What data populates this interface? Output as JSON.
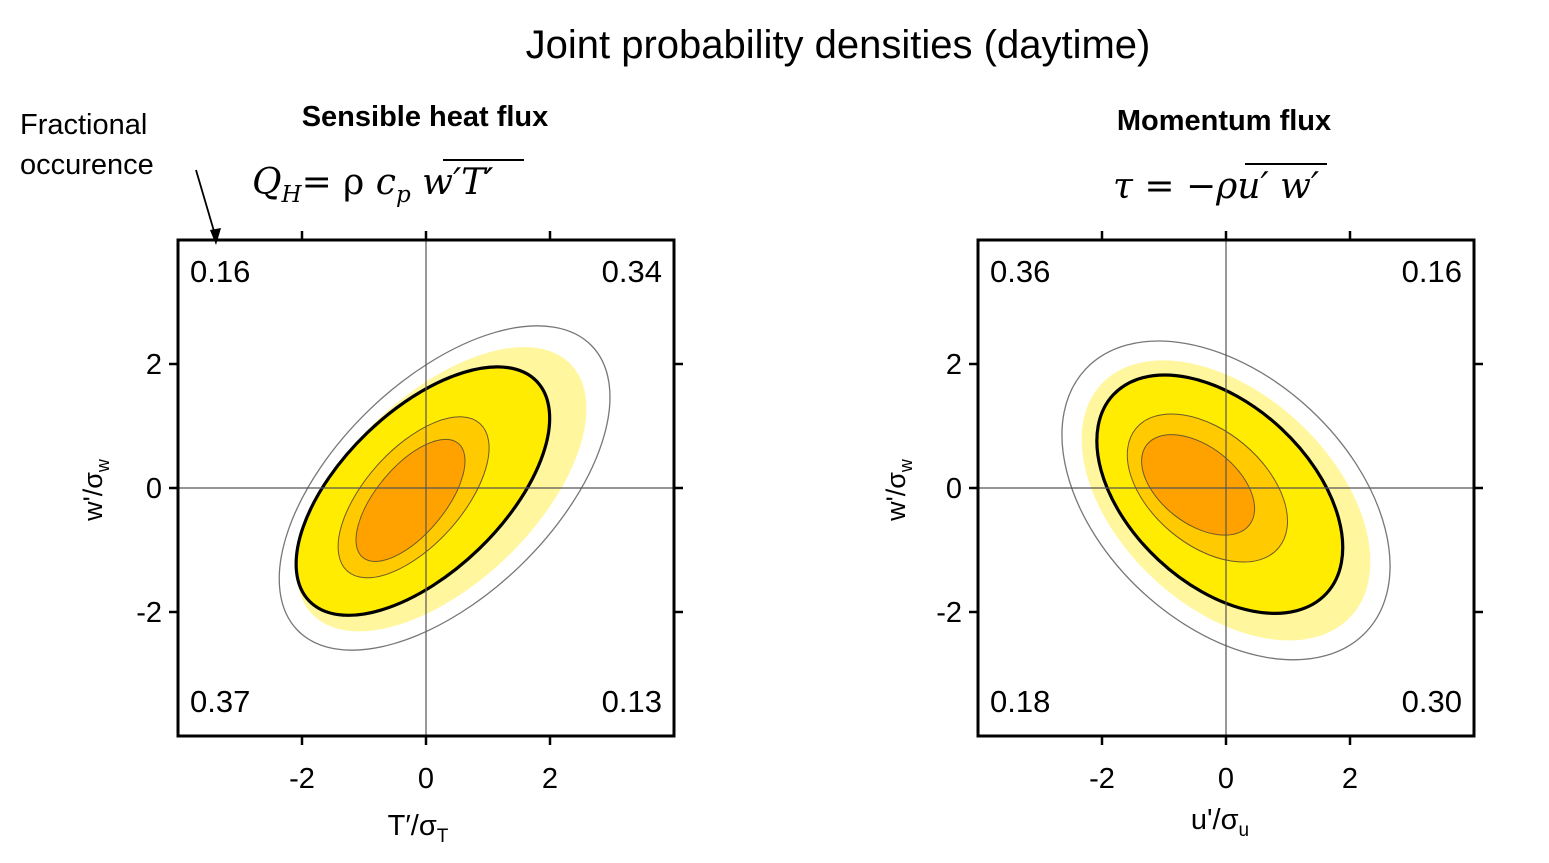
{
  "figure": {
    "title": "Joint probability densities (daytime)",
    "annotation": "Fractional occurence"
  },
  "colors": {
    "level1": "#ffffff",
    "level2": "#fff69e",
    "level3": "#ffec00",
    "level4": "#ffca00",
    "level5": "#ffa200",
    "frame": "#000000",
    "outer_contour": "#777777",
    "guide_lines": "#555555"
  },
  "chart_data": [
    {
      "type": "contour",
      "title": "Sensible heat flux",
      "equation": "Q_H = ρ c_p overline(w′T′)",
      "equation_parts": [
        "Q",
        "H",
        "= ρ ",
        "c",
        "p",
        "w′T′"
      ],
      "xlabel": "T′/σT",
      "xlabel_main": "T′/σ",
      "xlabel_sub": "T",
      "ylabel": "w′/σw",
      "ylabel_main": "w'/σ",
      "ylabel_sub": "w",
      "xlim": [
        -4,
        4
      ],
      "ylim": [
        -4,
        4
      ],
      "xticks": [
        -2,
        0,
        2
      ],
      "yticks": [
        -2,
        0,
        2
      ],
      "xtick_labels": [
        "-2",
        "0",
        "2"
      ],
      "ytick_labels": [
        "-2",
        "0",
        "2"
      ],
      "quadrant_fractions": {
        "top_left": "0.16",
        "top_right": "0.34",
        "bottom_left": "0.37",
        "bottom_right": "0.13"
      },
      "orientation": "positive correlation",
      "contours": [
        {
          "level": 1,
          "center": [
            0.3,
            0.0
          ],
          "semi_major": 3.3,
          "semi_minor": 1.75,
          "angle_deg": 44
        },
        {
          "level": 2,
          "center": [
            0.25,
            -0.02
          ],
          "semi_major": 2.9,
          "semi_minor": 1.52,
          "angle_deg": 44
        },
        {
          "level": 3,
          "center": [
            -0.05,
            -0.05
          ],
          "semi_major": 2.55,
          "semi_minor": 1.3,
          "angle_deg": 44,
          "highlight": true
        },
        {
          "level": 4,
          "center": [
            -0.2,
            -0.15
          ],
          "semi_major": 1.6,
          "semi_minor": 0.78,
          "angle_deg": 48
        },
        {
          "level": 5,
          "center": [
            -0.25,
            -0.2
          ],
          "semi_major": 1.2,
          "semi_minor": 0.55,
          "angle_deg": 50
        }
      ]
    },
    {
      "type": "contour",
      "title": "Momentum flux",
      "equation": "τ = −ρ overline(u′ w′)",
      "equation_parts": [
        "τ = −ρ",
        "u′ w′"
      ],
      "xlabel": "u'/σu",
      "xlabel_main": "u'/σ",
      "xlabel_sub": "u",
      "ylabel": "w′/σw",
      "ylabel_main": "w'/σ",
      "ylabel_sub": "w",
      "xlim": [
        -4,
        4
      ],
      "ylim": [
        -4,
        4
      ],
      "xticks": [
        -2,
        0,
        2
      ],
      "yticks": [
        -2,
        0,
        2
      ],
      "xtick_labels": [
        "-2",
        "0",
        "2"
      ],
      "ytick_labels": [
        "-2",
        "0",
        "2"
      ],
      "quadrant_fractions": {
        "top_left": "0.36",
        "top_right": "0.16",
        "bottom_left": "0.18",
        "bottom_right": "0.30"
      },
      "orientation": "negative correlation",
      "contours": [
        {
          "level": 1,
          "center": [
            0.0,
            -0.2
          ],
          "semi_major": 3.1,
          "semi_minor": 2.0,
          "angle_deg": -43
        },
        {
          "level": 2,
          "center": [
            0.0,
            -0.2
          ],
          "semi_major": 2.75,
          "semi_minor": 1.72,
          "angle_deg": -43
        },
        {
          "level": 3,
          "center": [
            -0.1,
            -0.1
          ],
          "semi_major": 2.35,
          "semi_minor": 1.45,
          "angle_deg": -43,
          "highlight": true
        },
        {
          "level": 4,
          "center": [
            -0.3,
            0.0
          ],
          "semi_major": 1.5,
          "semi_minor": 0.92,
          "angle_deg": -40
        },
        {
          "level": 5,
          "center": [
            -0.45,
            0.05
          ],
          "semi_major": 1.05,
          "semi_minor": 0.62,
          "angle_deg": -38
        }
      ]
    }
  ]
}
